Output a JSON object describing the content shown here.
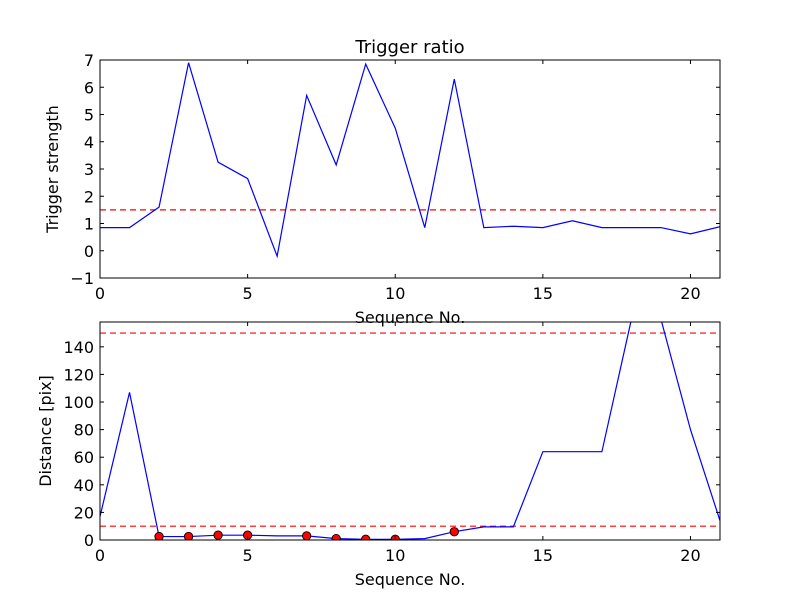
{
  "chart_data": [
    {
      "type": "line",
      "title": "Trigger ratio",
      "xlabel": "Sequence No.",
      "ylabel": "Trigger strength",
      "xlim": [
        0,
        21
      ],
      "ylim": [
        -1,
        7
      ],
      "xticks": [
        0,
        5,
        10,
        15,
        20
      ],
      "yticks": [
        -1,
        0,
        1,
        2,
        3,
        4,
        5,
        6,
        7
      ],
      "xtick_labels": [
        "0",
        "5",
        "10",
        "15",
        "20"
      ],
      "ytick_labels": [
        "−1",
        "0",
        "1",
        "2",
        "3",
        "4",
        "5",
        "6",
        "7"
      ],
      "grid": false,
      "series": [
        {
          "x": [
            0,
            1,
            2,
            3,
            4,
            5,
            6,
            7,
            8,
            9,
            10,
            11,
            12,
            13,
            14,
            15,
            16,
            17,
            18,
            19,
            20,
            21
          ],
          "values": [
            0.85,
            0.85,
            1.6,
            6.9,
            3.25,
            2.65,
            -0.2,
            5.7,
            3.15,
            6.85,
            4.5,
            0.85,
            6.3,
            0.85,
            0.9,
            0.85,
            1.1,
            0.85,
            0.85,
            0.85,
            0.62,
            0.88
          ],
          "color": "#0000ff",
          "style": "solid"
        }
      ],
      "hlines": [
        {
          "y": 1.5,
          "color": "#ff0000",
          "style": "dashed"
        }
      ]
    },
    {
      "type": "line",
      "title": "",
      "xlabel": "Sequence No.",
      "ylabel": "Distance [pix]",
      "xlim": [
        0,
        21
      ],
      "ylim": [
        0,
        158
      ],
      "xticks": [
        0,
        5,
        10,
        15,
        20
      ],
      "yticks": [
        0,
        20,
        40,
        60,
        80,
        100,
        120,
        140
      ],
      "xtick_labels": [
        "0",
        "5",
        "10",
        "15",
        "20"
      ],
      "ytick_labels": [
        "0",
        "20",
        "40",
        "60",
        "80",
        "100",
        "120",
        "140"
      ],
      "grid": false,
      "series": [
        {
          "x": [
            0,
            1,
            2,
            3,
            4,
            5,
            6,
            7,
            8,
            9,
            10,
            11,
            12,
            13,
            14,
            15,
            16,
            17,
            18,
            19,
            20,
            21
          ],
          "values": [
            17,
            107,
            2.5,
            2.5,
            3.5,
            3.5,
            3,
            3,
            1,
            0.5,
            0.5,
            1,
            6,
            9.5,
            9.5,
            64,
            64,
            64,
            160,
            160,
            80,
            14
          ],
          "color": "#0000ff",
          "style": "solid"
        },
        {
          "x": [
            2,
            3,
            4,
            5,
            7,
            8,
            9,
            10,
            12
          ],
          "values": [
            2.5,
            2.5,
            3.5,
            3.5,
            3,
            1,
            0.5,
            0.5,
            6
          ],
          "color": "#ff0000",
          "style": "markers"
        }
      ],
      "hlines": [
        {
          "y": 150,
          "color": "#ff0000",
          "style": "dashed"
        },
        {
          "y": 10,
          "color": "#ff0000",
          "style": "dashed"
        }
      ]
    }
  ]
}
